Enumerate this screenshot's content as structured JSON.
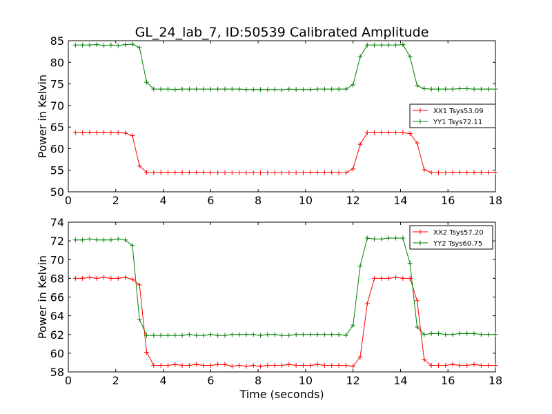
{
  "chart_data": [
    {
      "type": "line",
      "title": "GL_24_lab_7, ID:50539 Calibrated Amplitude",
      "xlabel": "",
      "ylabel": "Power in Kelvin",
      "xlim": [
        0,
        18
      ],
      "ylim": [
        50,
        85
      ],
      "xticks": [
        "0",
        "2",
        "4",
        "6",
        "8",
        "10",
        "12",
        "14",
        "16",
        "18"
      ],
      "yticks": [
        "50",
        "55",
        "60",
        "65",
        "70",
        "75",
        "80",
        "85"
      ],
      "grid": false,
      "legend_position": "right",
      "x": [
        0.3,
        0.6,
        0.9,
        1.2,
        1.5,
        1.8,
        2.1,
        2.4,
        2.7,
        3.0,
        3.3,
        3.6,
        3.9,
        4.2,
        4.5,
        4.8,
        5.1,
        5.4,
        5.7,
        6.0,
        6.3,
        6.6,
        6.9,
        7.2,
        7.5,
        7.8,
        8.1,
        8.4,
        8.7,
        9.0,
        9.3,
        9.6,
        9.9,
        10.2,
        10.5,
        10.8,
        11.1,
        11.4,
        11.7,
        12.0,
        12.3,
        12.6,
        12.9,
        13.2,
        13.5,
        13.8,
        14.1,
        14.4,
        14.7,
        15.0,
        15.3,
        15.6,
        15.9,
        16.2,
        16.5,
        16.8,
        17.1,
        17.4,
        17.7,
        18.0
      ],
      "series": [
        {
          "name": "XX1 Tsys53.09",
          "color": "#ff0000",
          "values": [
            63.7,
            63.7,
            63.8,
            63.7,
            63.8,
            63.7,
            63.7,
            63.6,
            63.0,
            56.0,
            54.5,
            54.4,
            54.5,
            54.5,
            54.5,
            54.5,
            54.5,
            54.5,
            54.5,
            54.4,
            54.4,
            54.4,
            54.4,
            54.4,
            54.4,
            54.4,
            54.4,
            54.4,
            54.4,
            54.4,
            54.4,
            54.4,
            54.4,
            54.5,
            54.5,
            54.5,
            54.5,
            54.4,
            54.4,
            55.3,
            61.0,
            63.7,
            63.7,
            63.7,
            63.7,
            63.7,
            63.7,
            63.5,
            61.3,
            55.1,
            54.5,
            54.4,
            54.4,
            54.5,
            54.5,
            54.5,
            54.5,
            54.5,
            54.5,
            54.5
          ]
        },
        {
          "name": "YY1 Tsys72.11",
          "color": "#008000",
          "values": [
            84.0,
            84.0,
            84.0,
            84.1,
            83.9,
            84.0,
            83.9,
            84.1,
            84.2,
            83.4,
            75.4,
            73.8,
            73.8,
            73.8,
            73.7,
            73.8,
            73.8,
            73.8,
            73.8,
            73.8,
            73.8,
            73.8,
            73.8,
            73.8,
            73.7,
            73.7,
            73.7,
            73.7,
            73.7,
            73.6,
            73.8,
            73.7,
            73.7,
            73.7,
            73.8,
            73.8,
            73.8,
            73.8,
            73.8,
            74.8,
            81.3,
            84.0,
            84.0,
            84.0,
            84.0,
            84.0,
            84.1,
            81.3,
            74.6,
            73.9,
            73.8,
            73.8,
            73.8,
            73.8,
            73.9,
            73.9,
            73.8,
            73.8,
            73.8,
            73.8
          ]
        }
      ]
    },
    {
      "type": "line",
      "title": "",
      "xlabel": "Time (seconds)",
      "ylabel": "Power in Kelvin",
      "xlim": [
        0,
        18
      ],
      "ylim": [
        58,
        74
      ],
      "xticks": [
        "0",
        "2",
        "4",
        "6",
        "8",
        "10",
        "12",
        "14",
        "16",
        "18"
      ],
      "yticks": [
        "58",
        "60",
        "62",
        "64",
        "66",
        "68",
        "70",
        "72",
        "74"
      ],
      "grid": false,
      "legend_position": "top-right",
      "x": [
        0.3,
        0.6,
        0.9,
        1.2,
        1.5,
        1.8,
        2.1,
        2.4,
        2.7,
        3.0,
        3.3,
        3.6,
        3.9,
        4.2,
        4.5,
        4.8,
        5.1,
        5.4,
        5.7,
        6.0,
        6.3,
        6.6,
        6.9,
        7.2,
        7.5,
        7.8,
        8.1,
        8.4,
        8.7,
        9.0,
        9.3,
        9.6,
        9.9,
        10.2,
        10.5,
        10.8,
        11.1,
        11.4,
        11.7,
        12.0,
        12.3,
        12.6,
        12.9,
        13.2,
        13.5,
        13.8,
        14.1,
        14.4,
        14.7,
        15.0,
        15.3,
        15.6,
        15.9,
        16.2,
        16.5,
        16.8,
        17.1,
        17.4,
        17.7,
        18.0
      ],
      "series": [
        {
          "name": "XX2 Tsys57.20",
          "color": "#ff0000",
          "values": [
            68.0,
            68.0,
            68.1,
            68.0,
            68.1,
            68.0,
            68.0,
            68.1,
            67.9,
            67.3,
            60.1,
            58.7,
            58.7,
            58.7,
            58.8,
            58.7,
            58.7,
            58.8,
            58.7,
            58.7,
            58.8,
            58.8,
            58.6,
            58.7,
            58.6,
            58.7,
            58.6,
            58.7,
            58.7,
            58.7,
            58.8,
            58.7,
            58.7,
            58.7,
            58.8,
            58.7,
            58.7,
            58.7,
            58.7,
            58.6,
            59.6,
            65.3,
            68.0,
            68.0,
            68.0,
            68.1,
            68.0,
            68.0,
            65.6,
            59.3,
            58.7,
            58.7,
            58.7,
            58.8,
            58.7,
            58.7,
            58.8,
            58.7,
            58.7,
            58.7
          ]
        },
        {
          "name": "YY2 Tsys60.75",
          "color": "#008000",
          "values": [
            72.1,
            72.1,
            72.2,
            72.1,
            72.1,
            72.1,
            72.2,
            72.1,
            71.5,
            63.6,
            61.9,
            61.9,
            61.9,
            61.9,
            61.9,
            61.9,
            62.0,
            61.9,
            61.9,
            62.0,
            61.9,
            61.9,
            62.0,
            62.0,
            62.0,
            62.0,
            61.9,
            62.0,
            62.0,
            61.9,
            61.9,
            62.0,
            62.0,
            62.0,
            62.0,
            62.0,
            62.0,
            62.0,
            61.9,
            63.0,
            69.3,
            72.3,
            72.2,
            72.2,
            72.3,
            72.3,
            72.3,
            69.6,
            62.8,
            62.0,
            62.1,
            62.1,
            62.0,
            62.0,
            62.1,
            62.1,
            62.1,
            62.0,
            62.0,
            62.0
          ]
        }
      ]
    }
  ]
}
